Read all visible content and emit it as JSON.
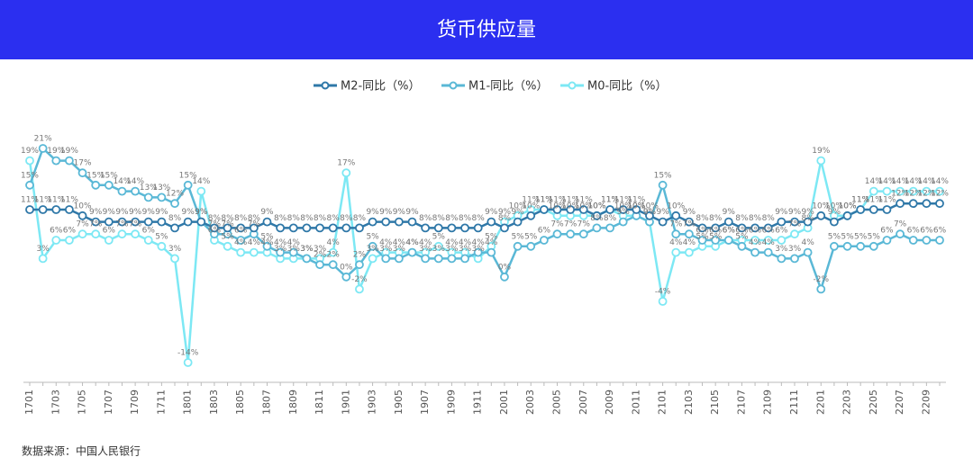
{
  "chart_data": {
    "type": "line",
    "title": "货币供应量",
    "source": "数据来源：中国人民银行",
    "legend_position": "top",
    "categories": [
      "1701",
      null,
      "1703",
      null,
      "1705",
      null,
      "1707",
      null,
      "1709",
      null,
      "1711",
      null,
      "1801",
      null,
      "1803",
      null,
      "1805",
      null,
      "1807",
      null,
      "1809",
      null,
      "1811",
      null,
      "1901",
      null,
      "1903",
      null,
      "1905",
      null,
      "1907",
      null,
      "1909",
      null,
      "1911",
      null,
      "2001",
      null,
      "2003",
      null,
      "2005",
      null,
      "2007",
      null,
      "2009",
      null,
      "2011",
      null,
      "2101",
      null,
      "2103",
      null,
      "2105",
      null,
      "2107",
      null,
      "2109",
      null,
      "2111",
      null,
      "2201",
      null,
      "2203",
      null,
      "2205",
      null,
      "2207",
      null,
      "2209",
      null
    ],
    "series": [
      {
        "name": "M2-同比（%）",
        "color": "#2f78a8",
        "values": [
          11,
          11,
          11,
          11,
          10,
          9,
          9,
          9,
          9,
          9,
          9,
          8,
          9,
          9,
          8,
          8,
          8,
          8,
          9,
          8,
          8,
          8,
          8,
          8,
          8,
          8,
          9,
          9,
          9,
          9,
          8,
          8,
          8,
          8,
          8,
          9,
          8,
          9,
          10,
          11,
          11,
          11,
          11,
          10,
          11,
          11,
          11,
          10,
          9,
          10,
          9,
          8,
          8,
          9,
          8,
          8,
          8,
          9,
          9,
          9,
          10,
          9,
          10,
          11,
          11,
          11,
          12,
          12,
          12,
          12
        ],
        "value_labels": [
          "11%",
          "11%",
          "11%",
          "11%",
          "10%",
          "9%",
          "9%",
          "9%",
          "9%",
          "9%",
          "9%",
          "8%",
          "9%",
          "9%",
          "8%",
          "8%",
          "8%",
          "8%",
          "9%",
          "8%",
          "8%",
          "8%",
          "8%",
          "8%",
          "8%",
          "8%",
          "9%",
          "9%",
          "9%",
          "9%",
          "8%",
          "8%",
          "8%",
          "8%",
          "8%",
          "9%",
          "8%",
          "9%",
          "10%",
          "11%",
          "11%",
          "11%",
          "11%",
          "10%",
          "11%",
          "11%",
          "11%",
          "10%",
          "9%",
          "10%",
          "9%",
          "8%",
          "8%",
          "9%",
          "8%",
          "8%",
          "8%",
          "9%",
          "9%",
          "9%",
          "10%",
          "9%",
          "10%",
          "11%",
          "11%",
          "11%",
          "12%",
          "12%",
          "12%",
          "12%"
        ]
      },
      {
        "name": "M1-同比（%）",
        "color": "#5ab8d6",
        "values": [
          15,
          21,
          19,
          19,
          17,
          15,
          15,
          14,
          14,
          13,
          13,
          12,
          15,
          9,
          7,
          7,
          6,
          7,
          5,
          4,
          4,
          3,
          2,
          2,
          0,
          2,
          5,
          3,
          3,
          4,
          3,
          3,
          3,
          3,
          4,
          4,
          0,
          5,
          5,
          6,
          7,
          7,
          7,
          8,
          8,
          9,
          10,
          9,
          15,
          7,
          7,
          6,
          6,
          6,
          5,
          4,
          4,
          3,
          3,
          4,
          -2,
          5,
          5,
          5,
          5,
          6,
          7,
          6,
          6,
          6
        ],
        "value_labels": [
          "15%",
          "21%",
          "19%",
          "19%",
          "17%",
          "15%",
          "15%",
          "14%",
          "14%",
          "13%",
          "13%",
          "12%",
          "15%",
          "9%",
          "7%",
          "7%",
          "6%",
          "7%",
          "5%",
          "4%",
          "4%",
          "3%",
          "2%",
          "2%",
          "0%",
          "2%",
          "5%",
          "3%",
          "3%",
          "4%",
          "3%",
          "3%",
          "3%",
          "3%",
          "4%",
          "4%",
          "0%",
          "5%",
          "5%",
          "6%",
          "7%",
          "7%",
          "7%",
          "8%",
          "8%",
          "9%",
          "10%",
          "9%",
          "15%",
          "7%",
          "7%",
          "6%",
          "6%",
          "6%",
          "5%",
          "4%",
          "4%",
          "3%",
          "3%",
          "4%",
          "-2%",
          "5%",
          "5%",
          "5%",
          "5%",
          "6%",
          "7%",
          "6%",
          "6%",
          "6%"
        ]
      },
      {
        "name": "M0-同比（%）",
        "color": "#7de8f4",
        "values": [
          19,
          3,
          6,
          6,
          7,
          7,
          6,
          7,
          7,
          6,
          5,
          3,
          -14,
          14,
          6,
          5,
          4,
          4,
          4,
          3,
          3,
          3,
          3,
          4,
          17,
          -2,
          3,
          4,
          4,
          4,
          4,
          5,
          4,
          4,
          3,
          5,
          9,
          10,
          11,
          11,
          10,
          10,
          10,
          10,
          11,
          10,
          10,
          9,
          -4,
          4,
          4,
          5,
          5,
          6,
          6,
          6,
          6,
          6,
          7,
          8,
          19,
          10,
          10,
          11,
          14,
          14,
          14,
          14,
          14,
          14
        ],
        "value_labels": [
          "19%",
          "3%",
          "6%",
          "6%",
          "7%",
          "7%",
          "6%",
          "7%",
          "7%",
          "6%",
          "5%",
          "3%",
          "-14%",
          "14%",
          "6%",
          "5%",
          "4%",
          "4%",
          "4%",
          "3%",
          "3%",
          "3%",
          "3%",
          "4%",
          "17%",
          "-2%",
          "3%",
          "4%",
          "4%",
          "4%",
          "4%",
          "5%",
          "4%",
          "4%",
          "3%",
          "5%",
          "9%",
          "10%",
          "11%",
          "11%",
          "10%",
          "10%",
          "10%",
          "10%",
          "11%",
          "10%",
          "10%",
          "9%",
          "-4%",
          "4%",
          "4%",
          "5%",
          "5%",
          "6%",
          "6%",
          "6%",
          "6%",
          "6%",
          "7%",
          "8%",
          "19%",
          "10%",
          "10%",
          "11%",
          "14%",
          "14%",
          "14%",
          "14%",
          "14%",
          "14%"
        ]
      }
    ]
  }
}
